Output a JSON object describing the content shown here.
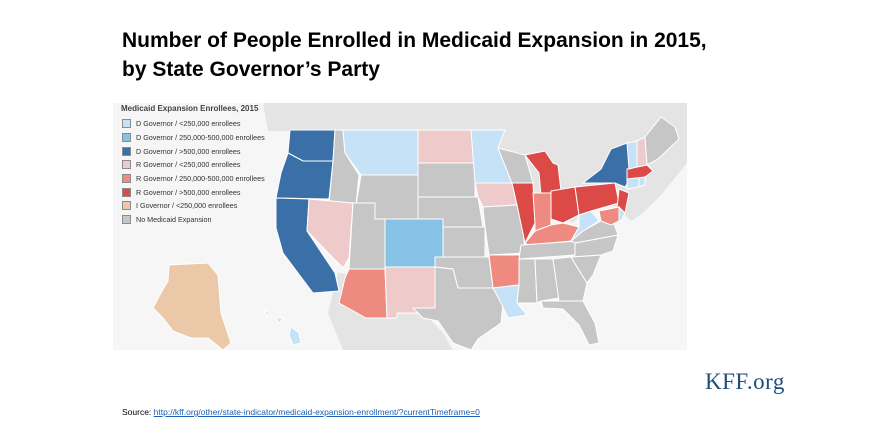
{
  "title": {
    "line1": "Number of People Enrolled in Medicaid Expansion in 2015,",
    "line2": "by State Governor’s Party"
  },
  "legend": {
    "title": "Medicaid Expansion Enrollees, 2015",
    "items": [
      {
        "label": "D Governor / <250,000 enrollees",
        "color": "#c6e2f7"
      },
      {
        "label": "D Governor / 250,000-500,000 enrollees",
        "color": "#86c1e6"
      },
      {
        "label": "D Governor / >500,000 enrollees",
        "color": "#3a6fa8"
      },
      {
        "label": "R Governor / <250,000 enrollees",
        "color": "#eecaca"
      },
      {
        "label": "R Governor / 250,000-500,000 enrollees",
        "color": "#ee8a80"
      },
      {
        "label": "R Governor / >500,000 enrollees",
        "color": "#db4a47"
      },
      {
        "label": "I Governor / <250,000 enrollees",
        "color": "#ebc9a8"
      },
      {
        "label": "No Medicaid Expansion",
        "color": "#c6c6c6"
      }
    ]
  },
  "colors": {
    "ocean": "#f6f6f6",
    "land_outside": "#e4e4e4",
    "state_border": "#ffffff"
  },
  "brand": "KFF.org",
  "source": {
    "label": "Source:",
    "url": "http://kff.org/other/state-indicator/medicaid-expansion-enrollment/?currentTimeframe=0"
  }
}
